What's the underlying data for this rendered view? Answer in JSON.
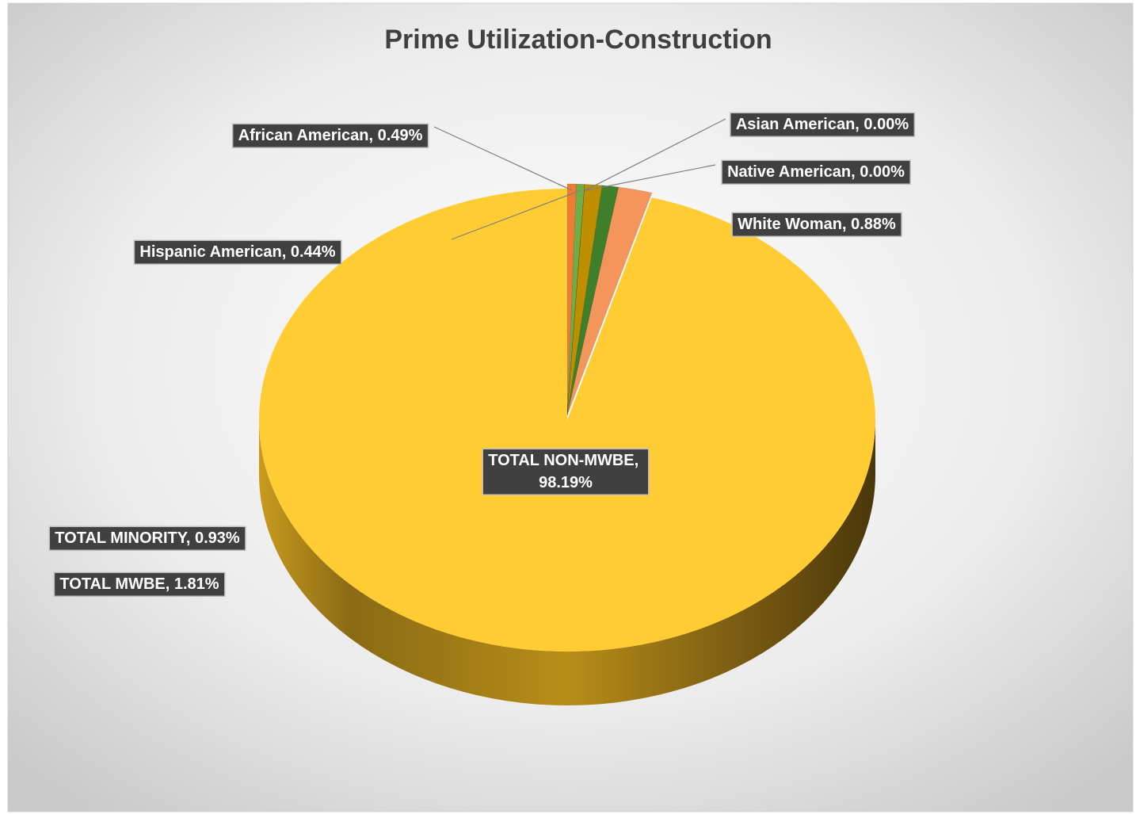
{
  "chart_data": {
    "type": "pie",
    "title": "Prime Utilization-Construction",
    "categories": [
      "African American",
      "Hispanic American",
      "Asian American",
      "Native American",
      "TOTAL MINORITY",
      "White Woman",
      "TOTAL MWBE",
      "TOTAL NON-MWBE"
    ],
    "values": [
      0.49,
      0.44,
      0.0,
      0.0,
      0.93,
      0.88,
      1.81,
      98.19
    ],
    "value_labels": [
      "0.49%",
      "0.44%",
      "0.00%",
      "0.00%",
      "0.93%",
      "0.88%",
      "1.81%",
      "98.19%"
    ],
    "label_separator": ", ",
    "colors": [
      "#ed7d31",
      "#70ad47",
      "#a5a5a5",
      "#4472c4",
      "#bf8f00",
      "#3f7f2a",
      "#f4955c",
      "#ffcc33"
    ]
  }
}
